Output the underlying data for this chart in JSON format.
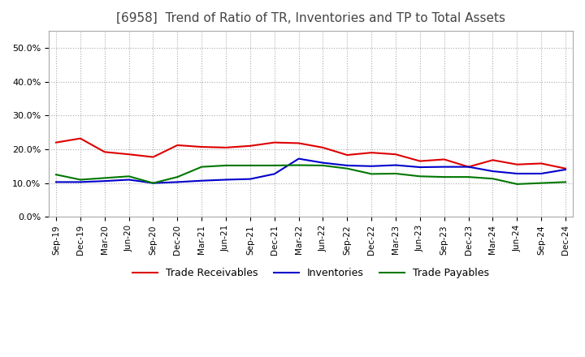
{
  "title": "[6958]  Trend of Ratio of TR, Inventories and TP to Total Assets",
  "title_fontsize": 11,
  "title_color": "#444444",
  "background_color": "#ffffff",
  "grid_color": "#aaaaaa",
  "ylim": [
    0.0,
    0.55
  ],
  "yticks": [
    0.0,
    0.1,
    0.2,
    0.3,
    0.4,
    0.5
  ],
  "ytick_labels": [
    "0.0%",
    "10.0%",
    "20.0%",
    "30.0%",
    "40.0%",
    "50.0%"
  ],
  "x_labels": [
    "Sep-19",
    "Dec-19",
    "Mar-20",
    "Jun-20",
    "Sep-20",
    "Dec-20",
    "Mar-21",
    "Jun-21",
    "Sep-21",
    "Dec-21",
    "Mar-22",
    "Jun-22",
    "Sep-22",
    "Dec-22",
    "Mar-23",
    "Jun-23",
    "Sep-23",
    "Dec-23",
    "Mar-24",
    "Jun-24",
    "Sep-24",
    "Dec-24"
  ],
  "trade_receivables": [
    0.22,
    0.232,
    0.192,
    0.185,
    0.177,
    0.212,
    0.207,
    0.205,
    0.21,
    0.22,
    0.218,
    0.205,
    0.183,
    0.19,
    0.185,
    0.165,
    0.17,
    0.148,
    0.168,
    0.155,
    0.158,
    0.143
  ],
  "inventories": [
    0.103,
    0.103,
    0.106,
    0.11,
    0.1,
    0.103,
    0.107,
    0.11,
    0.112,
    0.127,
    0.172,
    0.16,
    0.152,
    0.15,
    0.153,
    0.147,
    0.148,
    0.148,
    0.135,
    0.128,
    0.128,
    0.14
  ],
  "trade_payables": [
    0.125,
    0.11,
    0.115,
    0.12,
    0.1,
    0.118,
    0.148,
    0.152,
    0.152,
    0.152,
    0.153,
    0.152,
    0.143,
    0.127,
    0.128,
    0.12,
    0.118,
    0.118,
    0.113,
    0.097,
    0.1,
    0.103
  ],
  "tr_color": "#dd0000",
  "inv_color": "#0000cc",
  "tp_color": "#007700",
  "line_width": 1.5,
  "legend_labels": [
    "Trade Receivables",
    "Inventories",
    "Trade Payables"
  ],
  "legend_fontsize": 9
}
